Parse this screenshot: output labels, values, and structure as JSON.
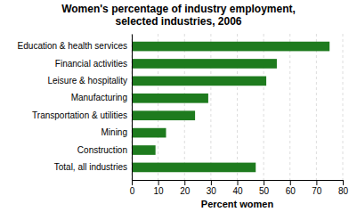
{
  "chart_data": {
    "type": "bar",
    "orientation": "horizontal",
    "title": "Women's percentage of industry employment,\nselected industries, 2006",
    "categories": [
      "Total, all industries",
      "Construction",
      "Mining",
      "Transportation & utilities",
      "Manufacturing",
      "Leisure & hospitality",
      "Financial activities",
      "Education & health services"
    ],
    "values": [
      47,
      9,
      13,
      24,
      29,
      51,
      55,
      75
    ],
    "color": "#1e7b1e",
    "xlabel": "Percent women",
    "xlim": [
      0,
      80
    ],
    "xticks": [
      0,
      10,
      20,
      30,
      40,
      50,
      60,
      70,
      80
    ],
    "grid": true
  }
}
